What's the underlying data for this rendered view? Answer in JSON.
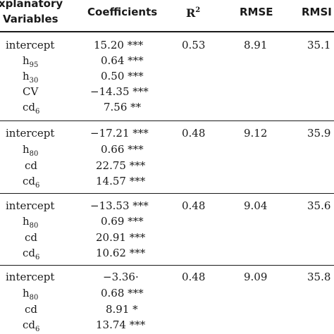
{
  "header": {
    "explanatory_line1": "xplanatory",
    "explanatory_line2": "Variables",
    "coefficients": "Coefficients",
    "r2": "R",
    "r2_sup": "2",
    "rmse": "RMSE",
    "rmse_cut": "RMSI"
  },
  "groups": [
    {
      "r2": "0.53",
      "rmse": "8.91",
      "rmse2": "35.1",
      "rows": [
        {
          "var": "intercept",
          "sub": "",
          "coef": "15.20 ***"
        },
        {
          "var": "h",
          "sub": "95",
          "coef": "0.64 ***"
        },
        {
          "var": "h",
          "sub": "30",
          "coef": "0.50 ***"
        },
        {
          "var": "CV",
          "sub": "",
          "coef": "−14.35 ***"
        },
        {
          "var": "cd",
          "sub": "6",
          "coef": "7.56 **"
        }
      ]
    },
    {
      "r2": "0.48",
      "rmse": "9.12",
      "rmse2": "35.9",
      "rows": [
        {
          "var": "intercept",
          "sub": "",
          "coef": "−17.21 ***"
        },
        {
          "var": "h",
          "sub": "80",
          "coef": "0.66 ***"
        },
        {
          "var": "cd",
          "sub": "",
          "coef": "22.75 ***"
        },
        {
          "var": "cd",
          "sub": "6",
          "coef": "14.57 ***"
        }
      ]
    },
    {
      "r2": "0.48",
      "rmse": "9.04",
      "rmse2": "35.6",
      "rows": [
        {
          "var": "intercept",
          "sub": "",
          "coef": "−13.53 ***"
        },
        {
          "var": "h",
          "sub": "80",
          "coef": "0.69 ***"
        },
        {
          "var": "cd",
          "sub": "",
          "coef": "20.91 ***"
        },
        {
          "var": "cd",
          "sub": "6",
          "coef": "10.62 ***"
        }
      ]
    },
    {
      "r2": "0.48",
      "rmse": "9.09",
      "rmse2": "35.8",
      "rows": [
        {
          "var": "intercept",
          "sub": "",
          "coef": "−3.36·"
        },
        {
          "var": "h",
          "sub": "80",
          "coef": "0.68 ***"
        },
        {
          "var": "cd",
          "sub": "",
          "coef": "8.91 *"
        },
        {
          "var": "cd",
          "sub": "6",
          "coef": "13.74 ***"
        }
      ]
    }
  ]
}
